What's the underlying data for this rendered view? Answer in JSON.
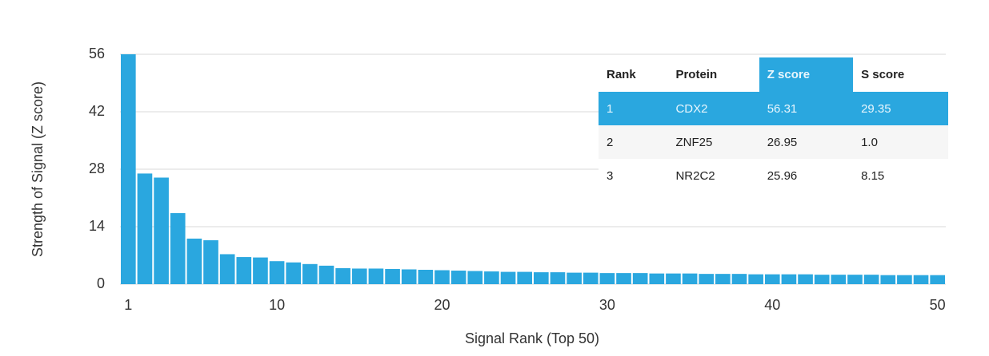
{
  "chart_data": {
    "type": "bar",
    "x": [
      1,
      2,
      3,
      4,
      5,
      6,
      7,
      8,
      9,
      10,
      11,
      12,
      13,
      14,
      15,
      16,
      17,
      18,
      19,
      20,
      21,
      22,
      23,
      24,
      25,
      26,
      27,
      28,
      29,
      30,
      31,
      32,
      33,
      34,
      35,
      36,
      37,
      38,
      39,
      40,
      41,
      42,
      43,
      44,
      45,
      46,
      47,
      48,
      49,
      50
    ],
    "values": [
      56.31,
      26.95,
      25.96,
      17.3,
      11.1,
      10.7,
      7.3,
      6.6,
      6.5,
      5.6,
      5.3,
      4.9,
      4.5,
      3.9,
      3.8,
      3.8,
      3.7,
      3.6,
      3.5,
      3.4,
      3.3,
      3.2,
      3.1,
      3.0,
      3.0,
      2.9,
      2.9,
      2.8,
      2.8,
      2.7,
      2.7,
      2.7,
      2.6,
      2.6,
      2.6,
      2.5,
      2.5,
      2.5,
      2.4,
      2.4,
      2.4,
      2.4,
      2.3,
      2.3,
      2.3,
      2.3,
      2.2,
      2.2,
      2.2,
      2.2
    ],
    "color": "#2aa7df",
    "xlim": [
      0.5,
      50.5
    ],
    "xticks": [
      1,
      10,
      20,
      30,
      40,
      50
    ],
    "ylim": [
      0,
      56
    ],
    "yticks": [
      0,
      14,
      28,
      42,
      56
    ],
    "grid": true,
    "xlabel": "Signal Rank (Top 50)",
    "ylabel": "Strength of Signal (Z score)"
  },
  "table": {
    "columns": [
      "Rank",
      "Protein",
      "Z score",
      "S score"
    ],
    "rows": [
      [
        "1",
        "CDX2",
        "56.31",
        "29.35"
      ],
      [
        "2",
        "ZNF25",
        "26.95",
        "1.0"
      ],
      [
        "3",
        "NR2C2",
        "25.96",
        "8.15"
      ]
    ]
  }
}
